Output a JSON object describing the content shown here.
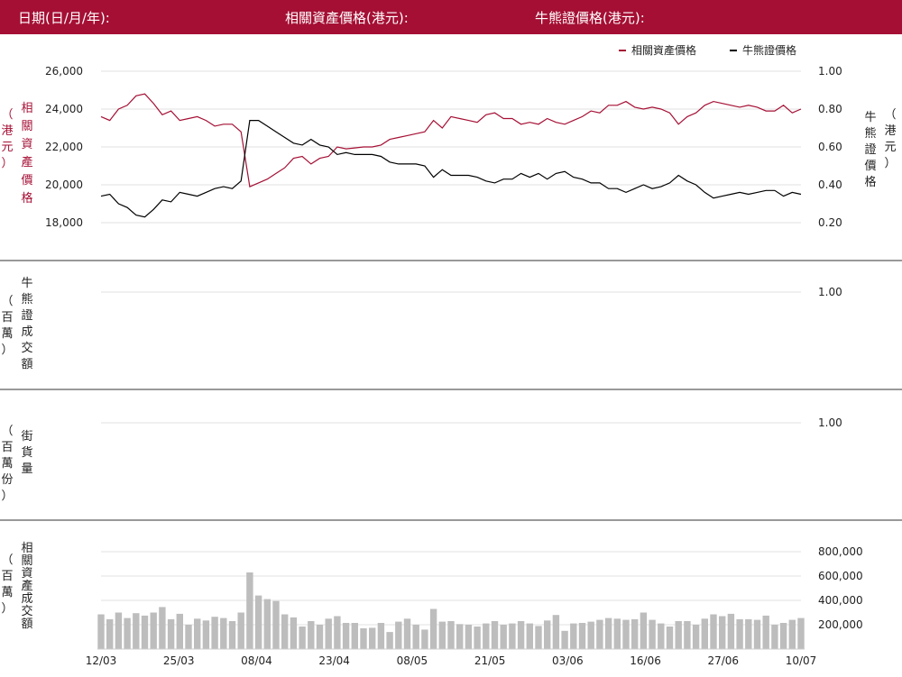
{
  "header": {
    "date_label": "日期(日/月/年):",
    "underlying_label": "相關資產價格(港元):",
    "cbbc_label": "牛熊證價格(港元):"
  },
  "colors": {
    "header_bg": "#a50f34",
    "underlying": "#a50f34",
    "cbbc": "#000000",
    "volume_bar": "#bdbdbd"
  },
  "chart_data": [
    {
      "type": "line",
      "legend": {
        "position": "top-right",
        "items": [
          "相關資產價格",
          "牛熊證價格"
        ]
      },
      "left_axis": {
        "label": "（港元）相關資產價格",
        "ticks": [
          "26,000",
          "24,000",
          "22,000",
          "20,000",
          "18,000"
        ],
        "ylim": [
          18000,
          26000
        ]
      },
      "right_axis": {
        "label": "（港元）牛熊證價格",
        "ticks": [
          "1.00",
          "0.80",
          "0.60",
          "0.40",
          "0.20"
        ],
        "ylim": [
          0.2,
          1.0
        ]
      },
      "series": [
        {
          "name": "相關資產價格",
          "axis": "left",
          "values": [
            23600,
            23400,
            24000,
            24200,
            24700,
            24800,
            24300,
            23700,
            23900,
            23400,
            23500,
            23600,
            23400,
            23100,
            23200,
            23200,
            22800,
            19900,
            20100,
            20300,
            20600,
            20900,
            21400,
            21500,
            21100,
            21400,
            21500,
            22000,
            21900,
            21950,
            22000,
            22000,
            22100,
            22400,
            22500,
            22600,
            22700,
            22800,
            23400,
            23000,
            23600,
            23500,
            23400,
            23300,
            23700,
            23800,
            23500,
            23500,
            23200,
            23300,
            23200,
            23500,
            23300,
            23200,
            23400,
            23600,
            23900,
            23800,
            24200,
            24200,
            24400,
            24100,
            24000,
            24100,
            24000,
            23800,
            23200,
            23600,
            23800,
            24200,
            24400,
            24300,
            24200,
            24100,
            24200,
            24100,
            23900,
            23900,
            24200,
            23800,
            24000
          ]
        },
        {
          "name": "牛熊證價格",
          "axis": "right",
          "values": [
            0.34,
            0.35,
            0.3,
            0.28,
            0.24,
            0.23,
            0.27,
            0.32,
            0.31,
            0.36,
            0.35,
            0.34,
            0.36,
            0.38,
            0.39,
            0.38,
            0.42,
            0.74,
            0.74,
            0.71,
            0.68,
            0.65,
            0.62,
            0.61,
            0.64,
            0.61,
            0.6,
            0.56,
            0.57,
            0.56,
            0.56,
            0.56,
            0.55,
            0.52,
            0.51,
            0.51,
            0.51,
            0.5,
            0.44,
            0.48,
            0.45,
            0.45,
            0.45,
            0.44,
            0.42,
            0.41,
            0.43,
            0.43,
            0.46,
            0.44,
            0.46,
            0.43,
            0.46,
            0.47,
            0.44,
            0.43,
            0.41,
            0.41,
            0.38,
            0.38,
            0.36,
            0.38,
            0.4,
            0.38,
            0.39,
            0.41,
            0.45,
            0.42,
            0.4,
            0.36,
            0.33,
            0.34,
            0.35,
            0.36,
            0.35,
            0.36,
            0.37,
            0.37,
            0.34,
            0.36,
            0.35
          ]
        }
      ]
    },
    {
      "type": "line",
      "left_axis": {
        "label": "（百萬）牛熊證成交額"
      },
      "right_axis": {
        "ticks": [
          "1.00"
        ]
      },
      "series": []
    },
    {
      "type": "line",
      "left_axis": {
        "label": "（百萬份）街貨量"
      },
      "right_axis": {
        "ticks": [
          "1.00"
        ]
      },
      "series": []
    },
    {
      "type": "bar",
      "left_axis": {
        "label": "（百萬）相關資產成交額"
      },
      "right_axis": {
        "ticks": [
          "800,000",
          "600,000",
          "400,000",
          "200,000"
        ],
        "ylim": [
          0,
          800000
        ]
      },
      "values": [
        285000,
        245000,
        300000,
        255000,
        295000,
        275000,
        300000,
        345000,
        245000,
        290000,
        200000,
        250000,
        235000,
        265000,
        255000,
        230000,
        300000,
        630000,
        440000,
        410000,
        395000,
        285000,
        260000,
        185000,
        230000,
        200000,
        250000,
        270000,
        215000,
        215000,
        170000,
        175000,
        215000,
        140000,
        225000,
        250000,
        200000,
        160000,
        330000,
        225000,
        230000,
        205000,
        200000,
        185000,
        210000,
        230000,
        200000,
        210000,
        230000,
        210000,
        190000,
        235000,
        280000,
        150000,
        210000,
        215000,
        225000,
        240000,
        255000,
        250000,
        240000,
        245000,
        300000,
        240000,
        210000,
        185000,
        230000,
        230000,
        200000,
        250000,
        285000,
        270000,
        290000,
        245000,
        245000,
        240000,
        275000,
        200000,
        215000,
        240000,
        255000
      ]
    }
  ],
  "x_axis": {
    "ticks": [
      "12/03",
      "25/03",
      "08/04",
      "23/04",
      "08/05",
      "21/05",
      "03/06",
      "16/06",
      "27/06",
      "10/07"
    ]
  }
}
